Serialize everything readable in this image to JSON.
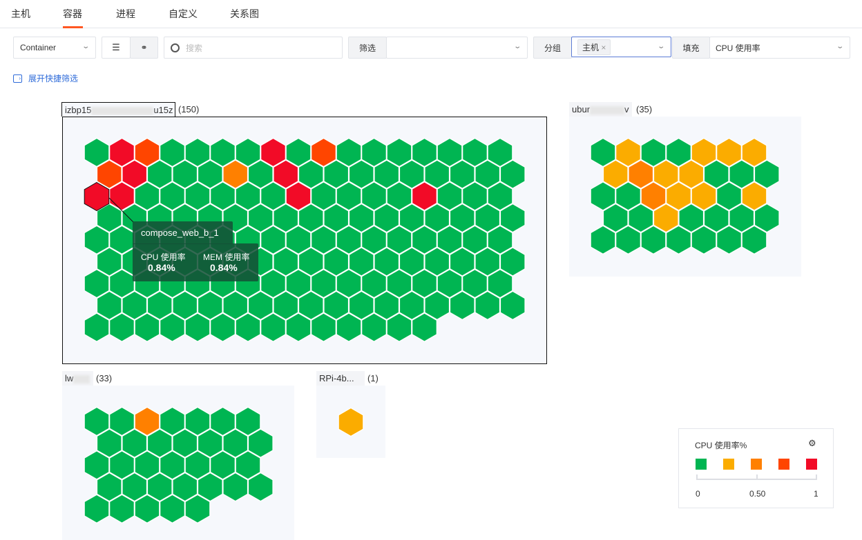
{
  "tabs": [
    {
      "label": "主机"
    },
    {
      "label": "容器",
      "active": true
    },
    {
      "label": "进程"
    },
    {
      "label": "自定义"
    },
    {
      "label": "关系图"
    }
  ],
  "toolbar": {
    "object_type": "Container",
    "view_list_icon": "list-icon",
    "view_map_icon": "hexagon-map-icon",
    "search_placeholder": "搜索",
    "filter_label": "筛选",
    "filter_value": "",
    "group_label": "分组",
    "group_tag": "主机",
    "fill_label": "填充",
    "fill_value": "CPU 使用率",
    "quick_filter": "展开快捷筛选"
  },
  "colors": {
    "levels": [
      "#00b552",
      "#fbac00",
      "#ff8000",
      "#ff4500",
      "#f20b27"
    ],
    "accent": "#ff5722",
    "link": "#2e6bd9"
  },
  "groups": [
    {
      "name_start": "izbp15",
      "name_end": "u15z",
      "count": "(150)",
      "selected": true,
      "per_row": 17,
      "levels": [
        [
          0,
          4,
          3,
          0,
          0,
          0,
          0,
          4,
          0,
          3,
          0,
          0,
          0,
          0,
          0,
          0,
          0
        ],
        [
          3,
          4,
          0,
          0,
          0,
          2,
          0,
          4,
          0,
          0,
          0,
          0,
          0,
          0,
          0,
          0,
          0
        ],
        [
          4,
          4,
          0,
          0,
          0,
          0,
          0,
          0,
          4,
          0,
          0,
          0,
          0,
          4,
          0,
          0,
          0
        ],
        [
          0,
          0,
          0,
          0,
          0,
          0,
          0,
          0,
          0,
          0,
          0,
          0,
          0,
          0,
          0,
          0,
          0
        ],
        [
          0,
          0,
          0,
          0,
          0,
          0,
          0,
          0,
          0,
          0,
          0,
          0,
          0,
          0,
          0,
          0,
          0
        ],
        [
          0,
          0,
          0,
          0,
          0,
          0,
          0,
          0,
          0,
          0,
          0,
          0,
          0,
          0,
          0,
          0,
          0
        ],
        [
          0,
          0,
          0,
          0,
          0,
          0,
          0,
          0,
          0,
          0,
          0,
          0,
          0,
          0,
          0,
          0,
          0
        ],
        [
          0,
          0,
          0,
          0,
          0,
          0,
          0,
          0,
          0,
          0,
          0,
          0,
          0,
          0,
          0,
          0,
          0
        ],
        [
          0,
          0,
          0,
          0,
          0,
          0,
          0,
          0,
          0,
          0,
          0,
          0,
          0,
          0
        ]
      ]
    },
    {
      "name_start": "ubur",
      "name_end": "v",
      "count": "(35)",
      "selected": false,
      "per_row": 7,
      "levels": [
        [
          0,
          1,
          0,
          0,
          1,
          1,
          1
        ],
        [
          1,
          2,
          1,
          1,
          0,
          0,
          0
        ],
        [
          0,
          0,
          2,
          1,
          1,
          0,
          1
        ],
        [
          0,
          0,
          1,
          0,
          0,
          0,
          0
        ],
        [
          0,
          0,
          0,
          0,
          0,
          0,
          0
        ]
      ]
    },
    {
      "name_start": "lw",
      "name_end": "",
      "count": "(33)",
      "selected": false,
      "per_row": 7,
      "levels": [
        [
          0,
          0,
          2,
          0,
          0,
          0,
          0
        ],
        [
          0,
          0,
          0,
          0,
          0,
          0,
          0
        ],
        [
          0,
          0,
          0,
          0,
          0,
          0,
          0
        ],
        [
          0,
          0,
          0,
          0,
          0,
          0,
          0
        ],
        [
          0,
          0,
          0,
          0,
          0
        ]
      ]
    },
    {
      "name_start": "RPi-4b...",
      "name_end": "",
      "count": "(1)",
      "selected": false,
      "per_row": 1,
      "levels": [
        [
          1
        ]
      ]
    }
  ],
  "tooltip": {
    "name": "compose_web_b_1",
    "cpu_label": "CPU 使用率",
    "cpu_value": "0.84%",
    "mem_label": "MEM 使用率",
    "mem_value": "0.84%"
  },
  "legend": {
    "title": "CPU 使用率%",
    "settings_icon": "gear-icon",
    "ticks": [
      "0",
      "0.50",
      "1"
    ],
    "range": [
      0,
      1
    ]
  }
}
